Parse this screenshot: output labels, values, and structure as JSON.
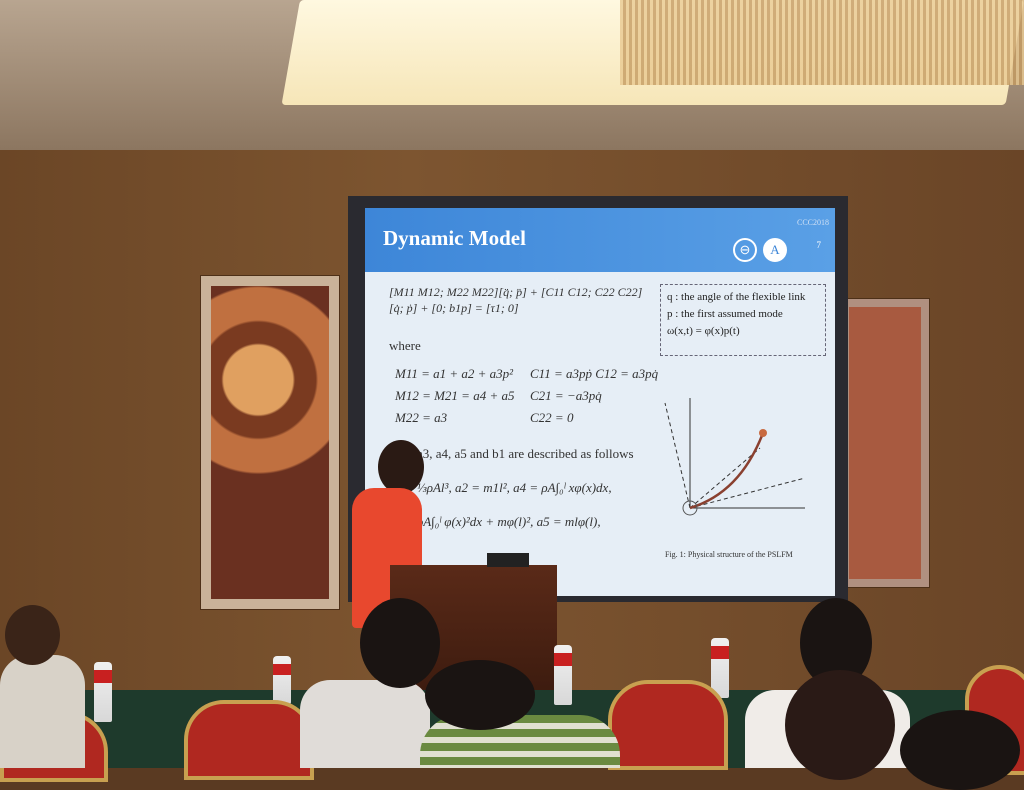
{
  "slide": {
    "title": "Dynamic Model",
    "conference": "CCC2018",
    "page_number": "7",
    "matrix_equation": "[M11 M12; M22 M22][q̈; p̈] + [C11 C12; C22 C22][q̇; ṗ] + [0; b1p] = [τ1; 0]",
    "where_label": "where",
    "equations": [
      "M11 = a1 + a2 + a3p²",
      "C11 = a3pṗ   C12 = a3pq̇",
      "M12 = M21 = a4 + a5",
      "C21 = −a3pq̇",
      "M22 = a3",
      "C22 = 0"
    ],
    "description_line": "a3, a4, a5 and b1 are described as follows",
    "param_line_1": "⅓ρAl³, a2 = m1l², a4 = ρA∫₀ˡ xφ(x)dx,",
    "param_line_2": "ρA∫₀ˡ φ(x)²dx + mφ(l)², a5 = mlφ(l),",
    "definitions": [
      "q : the angle of the flexible link",
      "p : the first assumed mode",
      "ω(x,t) = φ(x)p(t)"
    ],
    "figure_caption": "Fig. 1: Physical structure of the PSLFM"
  }
}
